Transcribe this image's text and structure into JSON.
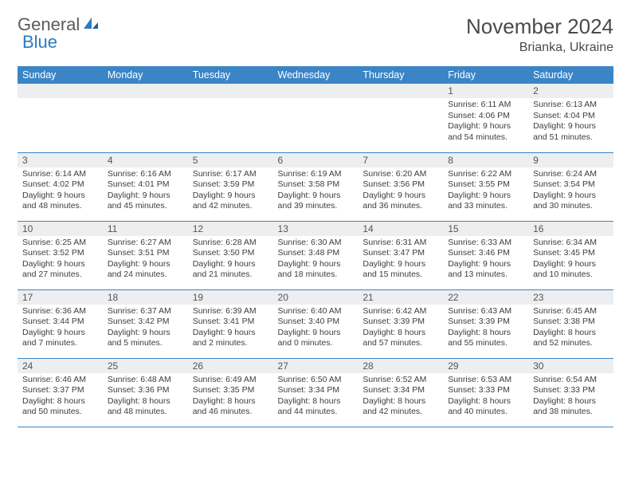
{
  "brand": {
    "word1": "General",
    "word2": "Blue"
  },
  "title": "November 2024",
  "location": "Brianka, Ukraine",
  "colors": {
    "header_bg": "#3b85c6",
    "header_text": "#ffffff",
    "daynum_bg": "#eceef0",
    "row_border": "#3b85c6",
    "brand_gray": "#5a5a5a",
    "brand_blue": "#2d7bc0",
    "body_text": "#3d3d3d"
  },
  "weekdays": [
    "Sunday",
    "Monday",
    "Tuesday",
    "Wednesday",
    "Thursday",
    "Friday",
    "Saturday"
  ],
  "weeks": [
    [
      {
        "num": "",
        "lines": []
      },
      {
        "num": "",
        "lines": []
      },
      {
        "num": "",
        "lines": []
      },
      {
        "num": "",
        "lines": []
      },
      {
        "num": "",
        "lines": []
      },
      {
        "num": "1",
        "lines": [
          "Sunrise: 6:11 AM",
          "Sunset: 4:06 PM",
          "Daylight: 9 hours and 54 minutes."
        ]
      },
      {
        "num": "2",
        "lines": [
          "Sunrise: 6:13 AM",
          "Sunset: 4:04 PM",
          "Daylight: 9 hours and 51 minutes."
        ]
      }
    ],
    [
      {
        "num": "3",
        "lines": [
          "Sunrise: 6:14 AM",
          "Sunset: 4:02 PM",
          "Daylight: 9 hours and 48 minutes."
        ]
      },
      {
        "num": "4",
        "lines": [
          "Sunrise: 6:16 AM",
          "Sunset: 4:01 PM",
          "Daylight: 9 hours and 45 minutes."
        ]
      },
      {
        "num": "5",
        "lines": [
          "Sunrise: 6:17 AM",
          "Sunset: 3:59 PM",
          "Daylight: 9 hours and 42 minutes."
        ]
      },
      {
        "num": "6",
        "lines": [
          "Sunrise: 6:19 AM",
          "Sunset: 3:58 PM",
          "Daylight: 9 hours and 39 minutes."
        ]
      },
      {
        "num": "7",
        "lines": [
          "Sunrise: 6:20 AM",
          "Sunset: 3:56 PM",
          "Daylight: 9 hours and 36 minutes."
        ]
      },
      {
        "num": "8",
        "lines": [
          "Sunrise: 6:22 AM",
          "Sunset: 3:55 PM",
          "Daylight: 9 hours and 33 minutes."
        ]
      },
      {
        "num": "9",
        "lines": [
          "Sunrise: 6:24 AM",
          "Sunset: 3:54 PM",
          "Daylight: 9 hours and 30 minutes."
        ]
      }
    ],
    [
      {
        "num": "10",
        "lines": [
          "Sunrise: 6:25 AM",
          "Sunset: 3:52 PM",
          "Daylight: 9 hours and 27 minutes."
        ]
      },
      {
        "num": "11",
        "lines": [
          "Sunrise: 6:27 AM",
          "Sunset: 3:51 PM",
          "Daylight: 9 hours and 24 minutes."
        ]
      },
      {
        "num": "12",
        "lines": [
          "Sunrise: 6:28 AM",
          "Sunset: 3:50 PM",
          "Daylight: 9 hours and 21 minutes."
        ]
      },
      {
        "num": "13",
        "lines": [
          "Sunrise: 6:30 AM",
          "Sunset: 3:48 PM",
          "Daylight: 9 hours and 18 minutes."
        ]
      },
      {
        "num": "14",
        "lines": [
          "Sunrise: 6:31 AM",
          "Sunset: 3:47 PM",
          "Daylight: 9 hours and 15 minutes."
        ]
      },
      {
        "num": "15",
        "lines": [
          "Sunrise: 6:33 AM",
          "Sunset: 3:46 PM",
          "Daylight: 9 hours and 13 minutes."
        ]
      },
      {
        "num": "16",
        "lines": [
          "Sunrise: 6:34 AM",
          "Sunset: 3:45 PM",
          "Daylight: 9 hours and 10 minutes."
        ]
      }
    ],
    [
      {
        "num": "17",
        "lines": [
          "Sunrise: 6:36 AM",
          "Sunset: 3:44 PM",
          "Daylight: 9 hours and 7 minutes."
        ]
      },
      {
        "num": "18",
        "lines": [
          "Sunrise: 6:37 AM",
          "Sunset: 3:42 PM",
          "Daylight: 9 hours and 5 minutes."
        ]
      },
      {
        "num": "19",
        "lines": [
          "Sunrise: 6:39 AM",
          "Sunset: 3:41 PM",
          "Daylight: 9 hours and 2 minutes."
        ]
      },
      {
        "num": "20",
        "lines": [
          "Sunrise: 6:40 AM",
          "Sunset: 3:40 PM",
          "Daylight: 9 hours and 0 minutes."
        ]
      },
      {
        "num": "21",
        "lines": [
          "Sunrise: 6:42 AM",
          "Sunset: 3:39 PM",
          "Daylight: 8 hours and 57 minutes."
        ]
      },
      {
        "num": "22",
        "lines": [
          "Sunrise: 6:43 AM",
          "Sunset: 3:39 PM",
          "Daylight: 8 hours and 55 minutes."
        ]
      },
      {
        "num": "23",
        "lines": [
          "Sunrise: 6:45 AM",
          "Sunset: 3:38 PM",
          "Daylight: 8 hours and 52 minutes."
        ]
      }
    ],
    [
      {
        "num": "24",
        "lines": [
          "Sunrise: 6:46 AM",
          "Sunset: 3:37 PM",
          "Daylight: 8 hours and 50 minutes."
        ]
      },
      {
        "num": "25",
        "lines": [
          "Sunrise: 6:48 AM",
          "Sunset: 3:36 PM",
          "Daylight: 8 hours and 48 minutes."
        ]
      },
      {
        "num": "26",
        "lines": [
          "Sunrise: 6:49 AM",
          "Sunset: 3:35 PM",
          "Daylight: 8 hours and 46 minutes."
        ]
      },
      {
        "num": "27",
        "lines": [
          "Sunrise: 6:50 AM",
          "Sunset: 3:34 PM",
          "Daylight: 8 hours and 44 minutes."
        ]
      },
      {
        "num": "28",
        "lines": [
          "Sunrise: 6:52 AM",
          "Sunset: 3:34 PM",
          "Daylight: 8 hours and 42 minutes."
        ]
      },
      {
        "num": "29",
        "lines": [
          "Sunrise: 6:53 AM",
          "Sunset: 3:33 PM",
          "Daylight: 8 hours and 40 minutes."
        ]
      },
      {
        "num": "30",
        "lines": [
          "Sunrise: 6:54 AM",
          "Sunset: 3:33 PM",
          "Daylight: 8 hours and 38 minutes."
        ]
      }
    ]
  ]
}
